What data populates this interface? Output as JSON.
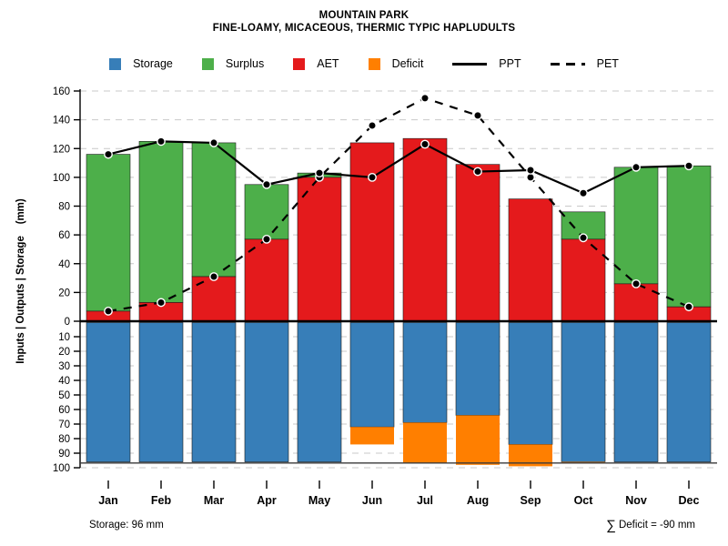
{
  "title": {
    "line1": "MOUNTAIN PARK",
    "line2": "FINE-LOAMY, MICACEOUS, THERMIC TYPIC HAPLUDULTS"
  },
  "colors": {
    "storage": "#377EB8",
    "surplus": "#4DAF4A",
    "aet": "#E41A1C",
    "deficit": "#FF7F00",
    "line": "#000000",
    "gridline": "#c9c9c9"
  },
  "legend": {
    "items": [
      {
        "label": "Storage",
        "type": "box"
      },
      {
        "label": "Surplus",
        "type": "box"
      },
      {
        "label": "AET",
        "type": "box"
      },
      {
        "label": "Deficit",
        "type": "box"
      },
      {
        "label": "PPT",
        "type": "line-solid"
      },
      {
        "label": "PET",
        "type": "line-dashed"
      }
    ]
  },
  "axis": {
    "ylabel": "Inputs | Outputs | Storage    (mm)",
    "upper_ticks": [
      0,
      20,
      40,
      60,
      80,
      100,
      120,
      140,
      160
    ],
    "lower_ticks": [
      10,
      20,
      30,
      40,
      50,
      60,
      70,
      80,
      90,
      100
    ]
  },
  "annotations": {
    "storage_note": "Storage: 96 mm",
    "sigma": "∑",
    "deficit_note": "Deficit = -90 mm"
  },
  "chart_data": {
    "type": "bar",
    "subtype": "water-balance combo (stacked bars above axis, inverted bars below, two line series)",
    "categories": [
      "Jan",
      "Feb",
      "Mar",
      "Apr",
      "May",
      "Jun",
      "Jul",
      "Aug",
      "Sep",
      "Oct",
      "Nov",
      "Dec"
    ],
    "upper_ylim": [
      0,
      160
    ],
    "lower_ylim": [
      0,
      100
    ],
    "grid": "dashed horizontal",
    "legend_position": "top center",
    "series": [
      {
        "name": "AET",
        "type": "bar",
        "axis": "upper",
        "stack": 1,
        "values": [
          7,
          13,
          31,
          57,
          100,
          124,
          127,
          109,
          85,
          57,
          26,
          10
        ]
      },
      {
        "name": "Surplus",
        "type": "bar",
        "axis": "upper",
        "stack": 2,
        "values": [
          109,
          112,
          93,
          38,
          3,
          0,
          0,
          0,
          0,
          19,
          81,
          98
        ]
      },
      {
        "name": "Storage",
        "type": "bar",
        "axis": "lower",
        "stack": 1,
        "values": [
          96,
          96,
          96,
          96,
          96,
          72,
          69,
          64,
          84,
          96,
          96,
          96
        ]
      },
      {
        "name": "Deficit",
        "type": "bar",
        "axis": "lower",
        "stack": 2,
        "values": [
          0,
          0,
          0,
          0,
          0,
          12,
          28,
          34,
          15,
          1,
          0,
          0
        ]
      },
      {
        "name": "PPT",
        "type": "line",
        "axis": "upper",
        "style": "solid",
        "values": [
          116,
          125,
          124,
          95,
          103,
          100,
          123,
          104,
          105,
          89,
          107,
          108
        ]
      },
      {
        "name": "PET",
        "type": "line",
        "axis": "upper",
        "style": "dashed",
        "values": [
          7,
          13,
          31,
          57,
          100,
          136,
          155,
          143,
          100,
          58,
          26,
          10
        ]
      }
    ],
    "storage_capacity_mm": 96,
    "deficit_total_mm": -90
  }
}
